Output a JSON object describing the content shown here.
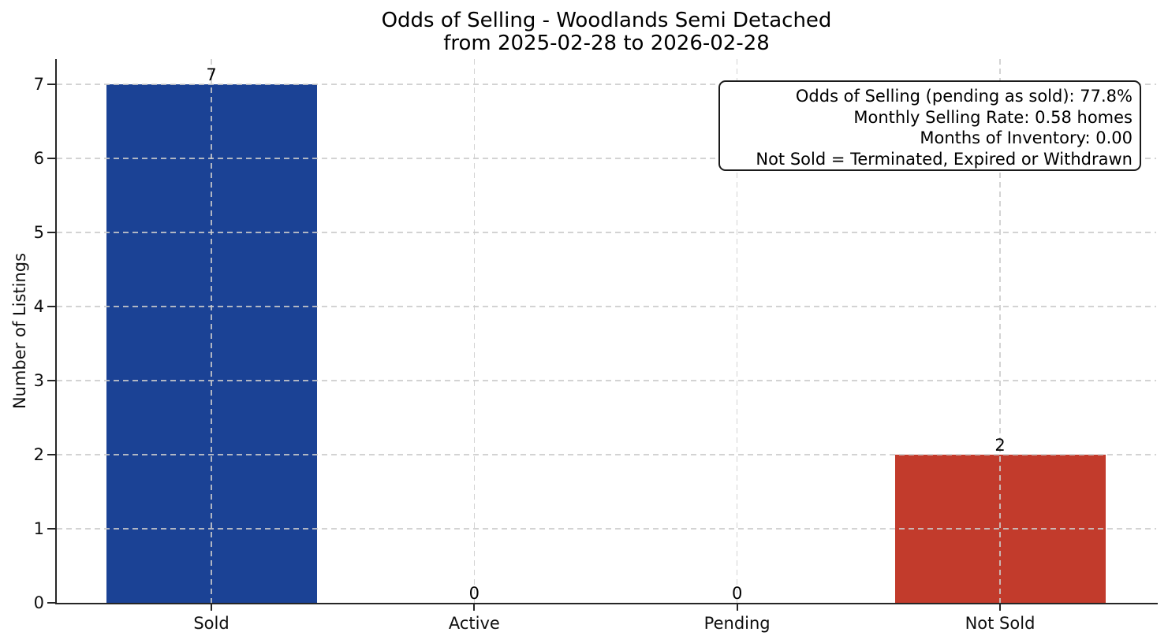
{
  "figure": {
    "title_line1": "Odds of Selling - Woodlands Semi Detached",
    "title_line2": "from 2025-02-28 to 2026-02-28"
  },
  "chart_data": {
    "type": "bar",
    "title": "Odds of Selling - Woodlands Semi Detached\nfrom 2025-02-28 to 2026-02-28",
    "categories": [
      "Sold",
      "Active",
      "Pending",
      "Not Sold"
    ],
    "values": [
      7,
      0,
      0,
      2
    ],
    "value_labels": [
      "7",
      "0",
      "0",
      "2"
    ],
    "bar_colors": [
      "#1b4295",
      null,
      null,
      "#c23b2c"
    ],
    "xlabel": "",
    "ylabel": "Number of Listings",
    "yticks": [
      0,
      1,
      2,
      3,
      4,
      5,
      6,
      7
    ],
    "ylim": [
      0,
      7.35
    ],
    "grid": {
      "style": "dashed",
      "horizontal": true,
      "vertical": true,
      "above_bars": true
    },
    "legend": null,
    "annotation_box": {
      "position": "top-right",
      "text_align": "right",
      "lines": [
        "Odds of Selling (pending as sold): 77.8%",
        "Monthly Selling Rate: 0.58 homes",
        "Months of Inventory: 0.00",
        "Not Sold = Terminated, Expired or Withdrawn"
      ]
    }
  },
  "colors": {
    "sold_bar": "#1b4295",
    "not_sold_bar": "#c23b2c",
    "grid_line": "#cbcbcb",
    "axis": "#262626",
    "background": "#ffffff",
    "text": "#000000"
  }
}
